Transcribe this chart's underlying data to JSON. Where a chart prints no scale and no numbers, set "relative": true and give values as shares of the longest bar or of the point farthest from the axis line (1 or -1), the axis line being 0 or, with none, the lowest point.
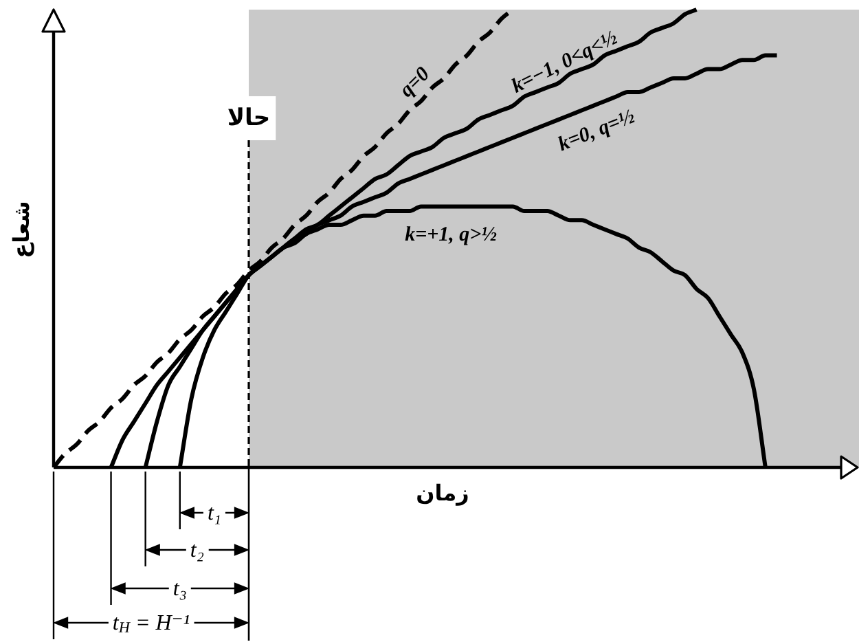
{
  "chart_data": {
    "type": "line",
    "relative": true,
    "xlabel": "زمان",
    "ylabel": "شعاع",
    "categories": [
      null,
      null,
      null,
      null,
      null,
      null,
      null,
      null,
      null,
      null,
      null,
      null,
      null,
      null,
      null,
      null,
      null,
      null,
      null,
      null,
      null,
      null,
      null,
      null,
      null,
      null,
      null,
      null,
      null,
      null,
      null,
      null,
      null,
      null,
      null,
      null,
      null,
      null,
      null,
      null,
      null,
      null,
      null,
      null,
      null,
      null,
      null,
      null,
      null,
      null,
      null,
      null,
      null,
      null,
      null,
      null,
      null,
      null,
      null,
      null,
      null,
      null,
      null,
      null,
      null,
      null,
      null,
      null,
      null,
      null
    ],
    "series": [
      {
        "name": "q=0",
        "color": "#000000",
        "line_style": "dashed",
        "values": [
          0,
          0.03,
          0.05,
          0.08,
          0.1,
          0.13,
          0.15,
          0.18,
          0.2,
          0.23,
          0.25,
          0.28,
          0.3,
          0.33,
          0.35,
          0.38,
          0.4,
          0.43,
          0.45,
          0.48,
          0.5,
          0.53,
          0.55,
          0.58,
          0.6,
          0.63,
          0.65,
          0.68,
          0.7,
          0.73,
          0.75,
          0.78,
          0.8,
          0.83,
          0.85,
          0.88,
          0.9,
          0.93,
          0.95,
          0.98,
          1.0,
          null,
          null,
          null,
          null,
          null,
          null,
          null,
          null,
          null,
          null,
          null,
          null,
          null,
          null,
          null,
          null,
          null,
          null,
          null,
          null,
          null,
          null,
          null,
          null,
          null,
          null,
          null,
          null,
          null
        ]
      },
      {
        "name": "k=−1, 0<q<½",
        "color": "#000000",
        "values": [
          null,
          null,
          null,
          null,
          null,
          0,
          0.06,
          0.1,
          0.14,
          0.18,
          0.21,
          0.24,
          0.27,
          0.3,
          0.33,
          0.36,
          0.39,
          0.42,
          0.44,
          0.46,
          0.48,
          0.5,
          0.52,
          0.53,
          0.55,
          0.57,
          0.59,
          0.61,
          0.63,
          0.64,
          0.66,
          0.68,
          0.69,
          0.7,
          0.72,
          0.73,
          0.74,
          0.76,
          0.77,
          0.78,
          0.79,
          0.81,
          0.82,
          0.83,
          0.84,
          0.86,
          0.87,
          0.88,
          0.9,
          0.91,
          0.92,
          0.93,
          0.95,
          0.96,
          0.97,
          0.99,
          1.0,
          null,
          null,
          null,
          null,
          null,
          null,
          null,
          null,
          null,
          null,
          null,
          null,
          null
        ]
      },
      {
        "name": "k=0, q=½",
        "color": "#000000",
        "values": [
          null,
          null,
          null,
          null,
          null,
          null,
          null,
          null,
          0,
          0.1,
          0.18,
          0.22,
          0.26,
          0.3,
          0.33,
          0.36,
          0.39,
          0.42,
          0.44,
          0.46,
          0.48,
          0.5,
          0.51,
          0.53,
          0.54,
          0.55,
          0.57,
          0.58,
          0.59,
          0.6,
          0.62,
          0.63,
          0.64,
          0.65,
          0.66,
          0.67,
          0.68,
          0.69,
          0.7,
          0.71,
          0.72,
          0.73,
          0.74,
          0.75,
          0.76,
          0.77,
          0.78,
          0.79,
          0.8,
          0.81,
          0.82,
          0.82,
          0.83,
          0.84,
          0.85,
          0.85,
          0.86,
          0.87,
          0.87,
          0.88,
          0.89,
          0.89,
          0.9,
          0.9,
          null,
          null,
          null,
          null,
          null,
          null
        ]
      },
      {
        "name": "k=+1, q>½",
        "color": "#000000",
        "values": [
          null,
          null,
          null,
          null,
          null,
          null,
          null,
          null,
          null,
          null,
          null,
          0,
          0.15,
          0.24,
          0.3,
          0.34,
          0.38,
          0.42,
          0.44,
          0.46,
          0.48,
          0.49,
          0.51,
          0.52,
          0.53,
          0.53,
          0.54,
          0.55,
          0.55,
          0.56,
          0.56,
          0.56,
          0.57,
          0.57,
          0.57,
          0.57,
          0.57,
          0.57,
          0.57,
          0.57,
          0.57,
          0.56,
          0.56,
          0.56,
          0.55,
          0.54,
          0.54,
          0.53,
          0.52,
          0.51,
          0.5,
          0.48,
          0.47,
          0.45,
          0.43,
          0.42,
          0.39,
          0.37,
          0.33,
          0.29,
          0.25,
          0.17,
          0,
          null,
          null,
          null,
          null,
          null,
          null,
          null
        ]
      }
    ],
    "annotations": [
      "حالا",
      "t₁",
      "t₂",
      "t₃",
      "t$_{H}$ = H⁻¹"
    ]
  }
}
